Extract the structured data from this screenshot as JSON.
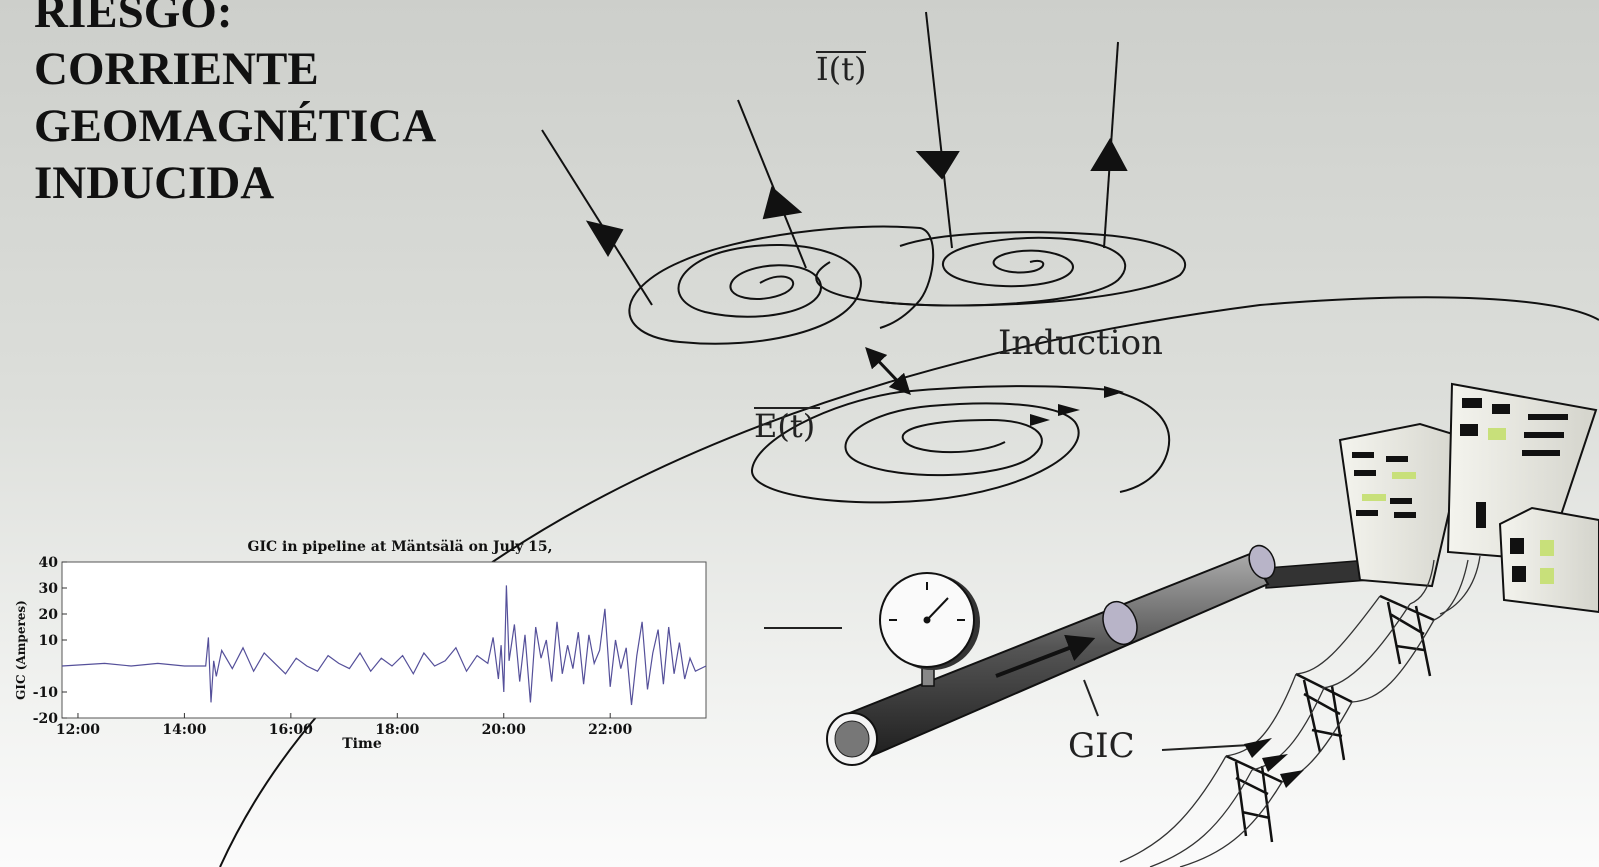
{
  "title_lines": [
    "RIESGO:",
    "CORRIENTE",
    "GEOMAGNÉTICA",
    "INDUCIDA"
  ],
  "diagram": {
    "current_label": "I(t)",
    "field_label": "E(t)",
    "induction_label": "Induction",
    "gic_label": "GIC"
  },
  "chart_data": {
    "type": "line",
    "title": "GIC in pipeline at Mäntsälä on July 15,",
    "xlabel": "Time",
    "ylabel": "GIC (Amperes)",
    "x_ticks": [
      "12:00",
      "14:00",
      "16:00",
      "18:00",
      "20:00",
      "22:00"
    ],
    "y_ticks": [
      "40",
      "30",
      "20",
      "10",
      "-10",
      "-20"
    ],
    "xlim_hours": [
      11.7,
      23.8
    ],
    "ylim": [
      -20,
      40
    ],
    "series": [
      {
        "color": "#55509a",
        "x_hours": [
          11.7,
          12.5,
          13.0,
          13.5,
          14.0,
          14.4,
          14.45,
          14.5,
          14.55,
          14.6,
          14.7,
          14.9,
          15.1,
          15.3,
          15.5,
          15.7,
          15.9,
          16.1,
          16.3,
          16.5,
          16.7,
          16.9,
          17.1,
          17.3,
          17.5,
          17.7,
          17.9,
          18.1,
          18.3,
          18.5,
          18.7,
          18.9,
          19.1,
          19.3,
          19.5,
          19.7,
          19.8,
          19.9,
          19.95,
          20.0,
          20.05,
          20.1,
          20.2,
          20.3,
          20.4,
          20.5,
          20.6,
          20.7,
          20.8,
          20.9,
          21.0,
          21.1,
          21.2,
          21.3,
          21.4,
          21.5,
          21.6,
          21.7,
          21.8,
          21.9,
          22.0,
          22.1,
          22.2,
          22.3,
          22.4,
          22.5,
          22.6,
          22.7,
          22.8,
          22.9,
          23.0,
          23.1,
          23.2,
          23.3,
          23.4,
          23.5,
          23.6,
          23.8
        ],
        "values": [
          0,
          1,
          0,
          1,
          0,
          0,
          11,
          -14,
          2,
          -4,
          6,
          -1,
          7,
          -2,
          5,
          1,
          -3,
          3,
          0,
          -2,
          4,
          1,
          -1,
          5,
          -2,
          3,
          0,
          4,
          -3,
          5,
          0,
          2,
          7,
          -2,
          4,
          1,
          11,
          -5,
          8,
          -10,
          31,
          2,
          16,
          -6,
          12,
          -14,
          15,
          3,
          10,
          -6,
          17,
          -3,
          8,
          -1,
          13,
          -7,
          12,
          1,
          6,
          22,
          -8,
          10,
          -1,
          7,
          -15,
          4,
          17,
          -9,
          5,
          14,
          -7,
          15,
          -3,
          9,
          -5,
          3,
          -2,
          0
        ]
      }
    ]
  }
}
